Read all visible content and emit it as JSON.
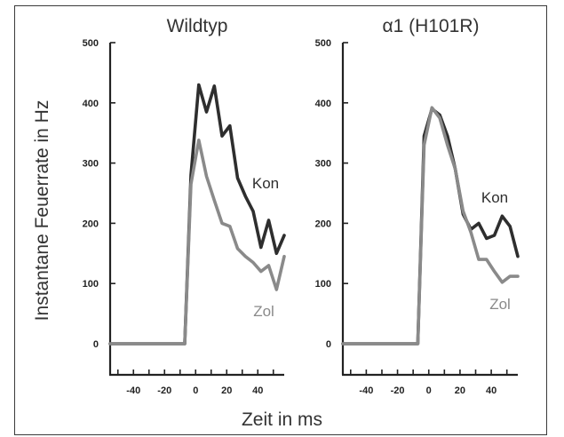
{
  "figure": {
    "ylabel": "Instantane Feuerrate in Hz",
    "xlabel": "Zeit in ms"
  },
  "chart_data": [
    {
      "type": "line",
      "title": "Wildtyp",
      "xlim": [
        -55,
        57
      ],
      "ylim": [
        0,
        500
      ],
      "xticks": [
        -40,
        -20,
        0,
        20,
        40
      ],
      "xtick_labels": [
        "-40",
        "-20",
        "0",
        "20",
        "40"
      ],
      "yticks": [
        0,
        100,
        200,
        300,
        400,
        500
      ],
      "ytick_labels": [
        "0",
        "100",
        "200",
        "300",
        "400",
        "500"
      ],
      "grid": false,
      "series": [
        {
          "name": "Kon",
          "color": "#2e2e2e",
          "x": [
            -55,
            -7,
            -3,
            2,
            7,
            12,
            17,
            22,
            27,
            32,
            37,
            42,
            47,
            52,
            57
          ],
          "y": [
            0,
            0,
            280,
            430,
            385,
            428,
            345,
            362,
            275,
            245,
            220,
            160,
            205,
            150,
            180
          ]
        },
        {
          "name": "Zol",
          "color": "#8a8a8a",
          "x": [
            -55,
            -7,
            -3,
            2,
            7,
            12,
            17,
            22,
            27,
            32,
            37,
            42,
            47,
            52,
            57
          ],
          "y": [
            0,
            0,
            265,
            338,
            278,
            238,
            200,
            195,
            158,
            145,
            135,
            120,
            130,
            90,
            145
          ]
        }
      ]
    },
    {
      "type": "line",
      "title": "α1 (H101R)",
      "xlim": [
        -55,
        57
      ],
      "ylim": [
        0,
        500
      ],
      "xticks": [
        -40,
        -20,
        0,
        20,
        40
      ],
      "xtick_labels": [
        "-40",
        "-20",
        "0",
        "20",
        "40"
      ],
      "yticks": [
        0,
        100,
        200,
        300,
        400,
        500
      ],
      "ytick_labels": [
        "0",
        "100",
        "200",
        "300",
        "400",
        "500"
      ],
      "grid": false,
      "series": [
        {
          "name": "Kon",
          "color": "#2e2e2e",
          "x": [
            -55,
            -7,
            -3,
            2,
            7,
            12,
            17,
            22,
            27,
            32,
            37,
            42,
            47,
            52,
            57
          ],
          "y": [
            0,
            0,
            345,
            390,
            380,
            345,
            290,
            215,
            190,
            200,
            175,
            180,
            212,
            195,
            145
          ]
        },
        {
          "name": "Zol",
          "color": "#8a8a8a",
          "x": [
            -55,
            -7,
            -3,
            2,
            7,
            12,
            17,
            22,
            27,
            32,
            37,
            42,
            47,
            52,
            57
          ],
          "y": [
            0,
            0,
            330,
            392,
            375,
            330,
            290,
            220,
            185,
            140,
            140,
            120,
            102,
            112,
            112
          ]
        }
      ]
    }
  ]
}
